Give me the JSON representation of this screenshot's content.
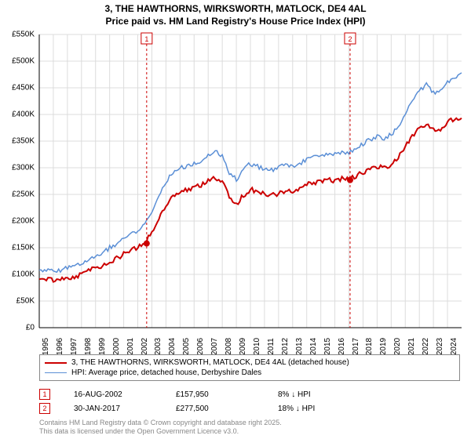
{
  "title_line1": "3, THE HAWTHORNS, WIRKSWORTH, MATLOCK, DE4 4AL",
  "title_line2": "Price paid vs. HM Land Registry's House Price Index (HPI)",
  "chart": {
    "type": "line",
    "background_color": "#ffffff",
    "grid_color": "#dcdcdc",
    "axis_color": "#000000",
    "x": {
      "min": 1995,
      "max": 2025,
      "ticks": [
        1995,
        1996,
        1997,
        1998,
        1999,
        2000,
        2001,
        2002,
        2003,
        2004,
        2005,
        2006,
        2007,
        2008,
        2009,
        2010,
        2011,
        2012,
        2013,
        2014,
        2015,
        2016,
        2017,
        2018,
        2019,
        2020,
        2021,
        2022,
        2023,
        2024
      ]
    },
    "y": {
      "min": 0,
      "max": 550,
      "unit_prefix": "£",
      "unit_suffix": "K",
      "zero_label": "£0",
      "ticks": [
        0,
        50,
        100,
        150,
        200,
        250,
        300,
        350,
        400,
        450,
        500,
        550
      ]
    },
    "series": [
      {
        "name": "property",
        "label": "3, THE HAWTHORNS, WIRKSWORTH, MATLOCK, DE4 4AL (detached house)",
        "color": "#cc0000",
        "line_width": 2,
        "data": [
          [
            1995,
            90
          ],
          [
            1995.5,
            92
          ],
          [
            1996,
            88
          ],
          [
            1996.5,
            90
          ],
          [
            1997,
            94
          ],
          [
            1997.5,
            96
          ],
          [
            1998,
            100
          ],
          [
            1998.5,
            108
          ],
          [
            1999,
            112
          ],
          [
            1999.5,
            115
          ],
          [
            2000,
            124
          ],
          [
            2000.5,
            130
          ],
          [
            2001,
            138
          ],
          [
            2001.5,
            145
          ],
          [
            2002,
            150
          ],
          [
            2002.5,
            158
          ],
          [
            2003,
            180
          ],
          [
            2003.5,
            205
          ],
          [
            2004,
            230
          ],
          [
            2004.5,
            248
          ],
          [
            2005,
            255
          ],
          [
            2005.5,
            258
          ],
          [
            2006,
            262
          ],
          [
            2006.5,
            268
          ],
          [
            2007,
            278
          ],
          [
            2007.5,
            282
          ],
          [
            2008,
            275
          ],
          [
            2008.5,
            245
          ],
          [
            2009,
            232
          ],
          [
            2009.5,
            248
          ],
          [
            2010,
            260
          ],
          [
            2010.5,
            255
          ],
          [
            2011,
            250
          ],
          [
            2011.5,
            248
          ],
          [
            2012,
            252
          ],
          [
            2012.5,
            258
          ],
          [
            2013,
            256
          ],
          [
            2013.5,
            260
          ],
          [
            2014,
            268
          ],
          [
            2014.5,
            272
          ],
          [
            2015,
            275
          ],
          [
            2015.5,
            278
          ],
          [
            2016,
            276
          ],
          [
            2016.5,
            280
          ],
          [
            2017,
            277
          ],
          [
            2017.5,
            285
          ],
          [
            2018,
            292
          ],
          [
            2018.5,
            298
          ],
          [
            2019,
            302
          ],
          [
            2019.5,
            300
          ],
          [
            2020,
            306
          ],
          [
            2020.5,
            318
          ],
          [
            2021,
            340
          ],
          [
            2021.5,
            358
          ],
          [
            2022,
            375
          ],
          [
            2022.5,
            382
          ],
          [
            2023,
            370
          ],
          [
            2023.5,
            372
          ],
          [
            2024,
            385
          ],
          [
            2024.5,
            392
          ],
          [
            2025,
            395
          ]
        ]
      },
      {
        "name": "hpi",
        "label": "HPI: Average price, detached house, Derbyshire Dales",
        "color": "#5b8fd6",
        "line_width": 1.5,
        "data": [
          [
            1995,
            105
          ],
          [
            1995.5,
            108
          ],
          [
            1996,
            106
          ],
          [
            1996.5,
            108
          ],
          [
            1997,
            112
          ],
          [
            1997.5,
            115
          ],
          [
            1998,
            120
          ],
          [
            1998.5,
            128
          ],
          [
            1999,
            134
          ],
          [
            1999.5,
            140
          ],
          [
            2000,
            150
          ],
          [
            2000.5,
            158
          ],
          [
            2001,
            168
          ],
          [
            2001.5,
            176
          ],
          [
            2002,
            182
          ],
          [
            2002.5,
            192
          ],
          [
            2003,
            218
          ],
          [
            2003.5,
            248
          ],
          [
            2004,
            275
          ],
          [
            2004.5,
            292
          ],
          [
            2005,
            300
          ],
          [
            2005.5,
            302
          ],
          [
            2006,
            308
          ],
          [
            2006.5,
            314
          ],
          [
            2007,
            325
          ],
          [
            2007.5,
            330
          ],
          [
            2008,
            322
          ],
          [
            2008.5,
            290
          ],
          [
            2009,
            278
          ],
          [
            2009.5,
            295
          ],
          [
            2010,
            308
          ],
          [
            2010.5,
            302
          ],
          [
            2011,
            298
          ],
          [
            2011.5,
            295
          ],
          [
            2012,
            300
          ],
          [
            2012.5,
            306
          ],
          [
            2013,
            304
          ],
          [
            2013.5,
            308
          ],
          [
            2014,
            316
          ],
          [
            2014.5,
            320
          ],
          [
            2015,
            324
          ],
          [
            2015.5,
            328
          ],
          [
            2016,
            326
          ],
          [
            2016.5,
            330
          ],
          [
            2017,
            328
          ],
          [
            2017.5,
            336
          ],
          [
            2018,
            345
          ],
          [
            2018.5,
            352
          ],
          [
            2019,
            358
          ],
          [
            2019.5,
            356
          ],
          [
            2020,
            362
          ],
          [
            2020.5,
            376
          ],
          [
            2021,
            402
          ],
          [
            2021.5,
            425
          ],
          [
            2022,
            445
          ],
          [
            2022.5,
            455
          ],
          [
            2023,
            442
          ],
          [
            2023.5,
            445
          ],
          [
            2024,
            460
          ],
          [
            2024.5,
            470
          ],
          [
            2025,
            475
          ]
        ]
      }
    ],
    "markers": [
      {
        "id": "1",
        "x": 2002.63,
        "date": "16-AUG-2002",
        "price": "£157,950",
        "pct": "8% ↓ HPI",
        "color": "#cc0000",
        "point_y": 158
      },
      {
        "id": "2",
        "x": 2017.08,
        "date": "30-JAN-2017",
        "price": "£277,500",
        "pct": "18% ↓ HPI",
        "color": "#cc0000",
        "point_y": 277
      }
    ]
  },
  "footer_line1": "Contains HM Land Registry data © Crown copyright and database right 2025.",
  "footer_line2": "This data is licensed under the Open Government Licence v3.0."
}
